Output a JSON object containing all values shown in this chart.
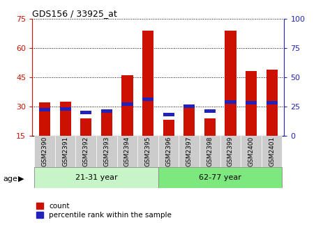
{
  "title": "GDS156 / 33925_at",
  "samples": [
    "GSM2390",
    "GSM2391",
    "GSM2392",
    "GSM2393",
    "GSM2394",
    "GSM2395",
    "GSM2396",
    "GSM2397",
    "GSM2398",
    "GSM2399",
    "GSM2400",
    "GSM2401"
  ],
  "count_values": [
    32,
    32.5,
    24,
    28.5,
    46,
    69,
    23,
    31,
    24,
    69,
    48,
    49
  ],
  "percentile_values": [
    22,
    23,
    20,
    21,
    27,
    31,
    18,
    25,
    21,
    29,
    28,
    28
  ],
  "ylim_left": [
    15,
    75
  ],
  "ylim_right": [
    0,
    100
  ],
  "yticks_left": [
    15,
    30,
    45,
    60,
    75
  ],
  "yticks_right": [
    0,
    25,
    50,
    75,
    100
  ],
  "groups": [
    {
      "label": "21-31 year",
      "start": 0,
      "end": 5,
      "color": "#c8f5c8"
    },
    {
      "label": "62-77 year",
      "start": 6,
      "end": 11,
      "color": "#7de87d"
    }
  ],
  "group_label": "age",
  "bar_color": "#cc1100",
  "percentile_color": "#2222bb",
  "bar_width": 0.55,
  "grid_color": "black",
  "background_color": "#ffffff",
  "left_axis_color": "#cc1100",
  "right_axis_color": "#2222bb",
  "legend_items": [
    {
      "label": "count",
      "color": "#cc1100"
    },
    {
      "label": "percentile rank within the sample",
      "color": "#2222bb"
    }
  ],
  "tick_bg_color": "#cccccc"
}
